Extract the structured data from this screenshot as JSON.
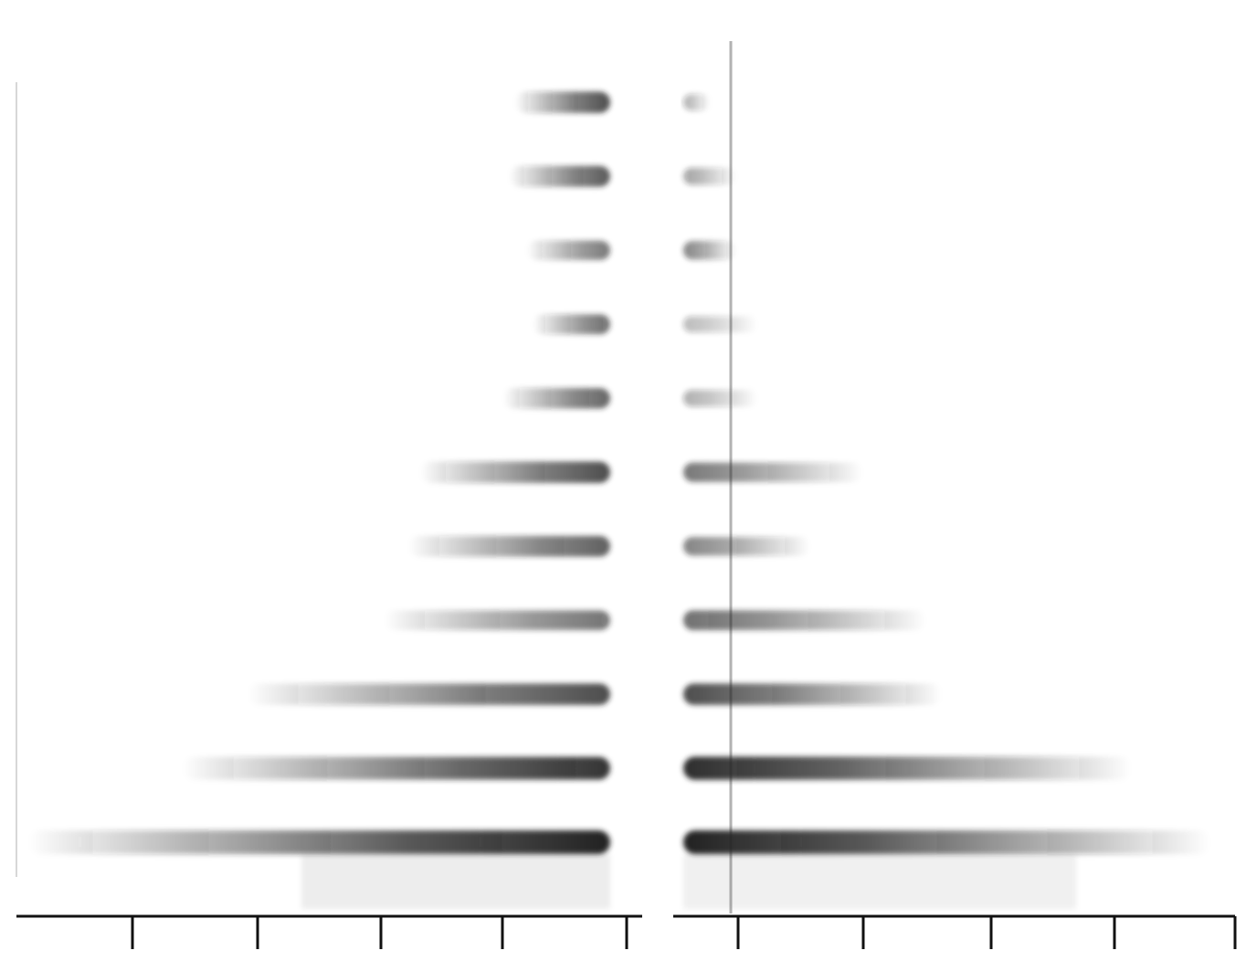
{
  "chart_data": {
    "type": "other",
    "title": "",
    "grid": false,
    "legend": "none",
    "ink_color": "#222222",
    "rows": [
      {
        "left_extent": 0.16,
        "left_density": 0.8,
        "right_extent": 0.05,
        "right_density": 0.35
      },
      {
        "left_extent": 0.17,
        "left_density": 0.75,
        "right_extent": 0.1,
        "right_density": 0.4
      },
      {
        "left_extent": 0.14,
        "left_density": 0.6,
        "right_extent": 0.1,
        "right_density": 0.55
      },
      {
        "left_extent": 0.13,
        "left_density": 0.65,
        "right_extent": 0.14,
        "right_density": 0.3
      },
      {
        "left_extent": 0.18,
        "left_density": 0.7,
        "right_extent": 0.14,
        "right_density": 0.35
      },
      {
        "left_extent": 0.32,
        "left_density": 0.8,
        "right_extent": 0.34,
        "right_density": 0.6
      },
      {
        "left_extent": 0.34,
        "left_density": 0.72,
        "right_extent": 0.24,
        "right_density": 0.55
      },
      {
        "left_extent": 0.38,
        "left_density": 0.62,
        "right_extent": 0.46,
        "right_density": 0.65
      },
      {
        "left_extent": 0.61,
        "left_density": 0.8,
        "right_extent": 0.49,
        "right_density": 0.8
      },
      {
        "left_extent": 0.72,
        "left_density": 0.92,
        "right_extent": 0.85,
        "right_density": 0.95
      },
      {
        "left_extent": 0.98,
        "left_density": 1.0,
        "right_extent": 1.0,
        "right_density": 1.0
      }
    ]
  }
}
